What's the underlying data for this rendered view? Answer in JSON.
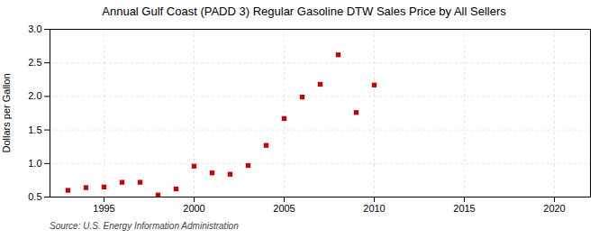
{
  "chart_data": {
    "type": "scatter",
    "title": "Annual Gulf Coast (PADD 3) Regular Gasoline DTW Sales Price by All Sellers",
    "ylabel": "Dollars per Gallon",
    "annotations": [
      "Source: U.S. Energy Information Administration"
    ],
    "x": [
      1993,
      1994,
      1995,
      1996,
      1997,
      1998,
      1999,
      2000,
      2001,
      2002,
      2003,
      2004,
      2005,
      2006,
      2007,
      2008,
      2009,
      2010
    ],
    "values": [
      0.6,
      0.64,
      0.65,
      0.72,
      0.72,
      0.53,
      0.62,
      0.96,
      0.86,
      0.84,
      0.97,
      1.27,
      1.67,
      1.99,
      2.18,
      2.62,
      1.76,
      2.17
    ],
    "color": "#cc0000",
    "marker": "square",
    "xlim": [
      1992,
      2022
    ],
    "ylim": [
      0.5,
      3.0
    ],
    "xticks": [
      1995,
      2000,
      2005,
      2010,
      2015,
      2020
    ],
    "yticks": [
      0.5,
      {
        "value": 1,
        "label": "1.0"
      },
      1.5,
      {
        "value": 2,
        "label": "2.0"
      },
      2.5,
      {
        "value": 3,
        "label": "3.0"
      }
    ],
    "grid": true
  }
}
